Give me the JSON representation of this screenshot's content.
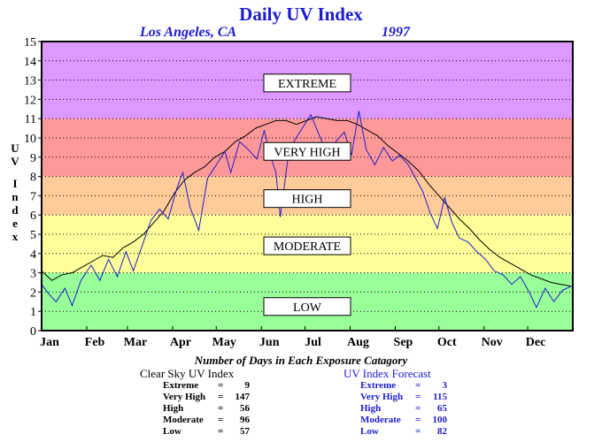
{
  "chart_data": {
    "type": "line",
    "title": "Daily UV Index",
    "subtitle_location": "Los Angeles, CA",
    "subtitle_year": "1997",
    "ylabel": "UV Index",
    "xlabel": "",
    "ylim": [
      0,
      15
    ],
    "yticks": [
      "0",
      "1",
      "2",
      "3",
      "4",
      "5",
      "6",
      "7",
      "8",
      "9",
      "10",
      "11",
      "12",
      "13",
      "14",
      "15"
    ],
    "xticks": [
      "Jan",
      "Feb",
      "Mar",
      "Apr",
      "May",
      "Jun",
      "Jul",
      "Aug",
      "Sep",
      "Oct",
      "Nov",
      "Dec"
    ],
    "bands": [
      {
        "label": "LOW",
        "from": 0,
        "to": 3,
        "color": "#99ff99",
        "label_y": 1.25
      },
      {
        "label": "MODERATE",
        "from": 3,
        "to": 6,
        "color": "#ffff99",
        "label_y": 4.4
      },
      {
        "label": "HIGH",
        "from": 6,
        "to": 8,
        "color": "#ffcc99",
        "label_y": 6.85
      },
      {
        "label": "VERY HIGH",
        "from": 8,
        "to": 11,
        "color": "#ff9999",
        "label_y": 9.3
      },
      {
        "label": "EXTREME",
        "from": 11,
        "to": 15,
        "color": "#dd99ff",
        "label_y": 12.85
      }
    ],
    "series": [
      {
        "color": "#000000",
        "points": [
          [
            1,
            3.1
          ],
          [
            8,
            2.6
          ],
          [
            15,
            2.9
          ],
          [
            22,
            3.0
          ],
          [
            29,
            3.3
          ],
          [
            36,
            3.6
          ],
          [
            43,
            3.9
          ],
          [
            50,
            3.8
          ],
          [
            57,
            4.3
          ],
          [
            64,
            4.6
          ],
          [
            71,
            5.0
          ],
          [
            78,
            5.6
          ],
          [
            85,
            6.2
          ],
          [
            92,
            7.1
          ],
          [
            99,
            7.8
          ],
          [
            106,
            8.2
          ],
          [
            113,
            8.5
          ],
          [
            120,
            9.0
          ],
          [
            127,
            9.3
          ],
          [
            134,
            9.8
          ],
          [
            141,
            10.1
          ],
          [
            148,
            10.5
          ],
          [
            155,
            10.7
          ],
          [
            162,
            10.9
          ],
          [
            169,
            10.9
          ],
          [
            176,
            10.7
          ],
          [
            183,
            10.9
          ],
          [
            190,
            11.1
          ],
          [
            197,
            11.0
          ],
          [
            204,
            10.9
          ],
          [
            211,
            10.9
          ],
          [
            218,
            10.7
          ],
          [
            225,
            10.4
          ],
          [
            232,
            10.1
          ],
          [
            239,
            9.6
          ],
          [
            246,
            9.2
          ],
          [
            253,
            8.8
          ],
          [
            260,
            8.3
          ],
          [
            267,
            7.6
          ],
          [
            274,
            7.0
          ],
          [
            281,
            6.4
          ],
          [
            288,
            5.8
          ],
          [
            295,
            5.3
          ],
          [
            302,
            4.7
          ],
          [
            309,
            4.2
          ],
          [
            316,
            3.8
          ],
          [
            323,
            3.5
          ],
          [
            330,
            3.2
          ],
          [
            337,
            2.9
          ],
          [
            344,
            2.7
          ],
          [
            351,
            2.5
          ],
          [
            358,
            2.4
          ],
          [
            365,
            2.3
          ]
        ]
      },
      {
        "color": "#1c1cd0",
        "points": [
          [
            1,
            2.4
          ],
          [
            6,
            1.9
          ],
          [
            11,
            1.5
          ],
          [
            17,
            2.2
          ],
          [
            22,
            1.3
          ],
          [
            28,
            2.6
          ],
          [
            35,
            3.4
          ],
          [
            41,
            2.6
          ],
          [
            47,
            3.7
          ],
          [
            53,
            2.8
          ],
          [
            59,
            4.1
          ],
          [
            64,
            3.1
          ],
          [
            71,
            4.6
          ],
          [
            76,
            5.7
          ],
          [
            82,
            6.3
          ],
          [
            88,
            5.8
          ],
          [
            94,
            7.4
          ],
          [
            98,
            8.2
          ],
          [
            103,
            6.4
          ],
          [
            109,
            5.2
          ],
          [
            115,
            7.9
          ],
          [
            121,
            8.6
          ],
          [
            127,
            9.3
          ],
          [
            131,
            8.2
          ],
          [
            137,
            9.8
          ],
          [
            143,
            9.4
          ],
          [
            149,
            8.9
          ],
          [
            154,
            10.4
          ],
          [
            158,
            9.1
          ],
          [
            162,
            8.2
          ],
          [
            165,
            5.9
          ],
          [
            170,
            8.8
          ],
          [
            175,
            9.9
          ],
          [
            181,
            10.6
          ],
          [
            186,
            11.2
          ],
          [
            192,
            10.1
          ],
          [
            197,
            9.2
          ],
          [
            203,
            9.8
          ],
          [
            209,
            10.3
          ],
          [
            214,
            9.1
          ],
          [
            219,
            11.4
          ],
          [
            224,
            9.4
          ],
          [
            230,
            8.6
          ],
          [
            236,
            9.5
          ],
          [
            242,
            8.8
          ],
          [
            247,
            9.1
          ],
          [
            253,
            8.6
          ],
          [
            258,
            7.9
          ],
          [
            263,
            7.2
          ],
          [
            268,
            6.1
          ],
          [
            273,
            5.3
          ],
          [
            278,
            6.9
          ],
          [
            283,
            5.6
          ],
          [
            288,
            4.8
          ],
          [
            294,
            4.6
          ],
          [
            300,
            4.1
          ],
          [
            306,
            3.7
          ],
          [
            312,
            3.1
          ],
          [
            318,
            2.9
          ],
          [
            324,
            2.4
          ],
          [
            330,
            2.8
          ],
          [
            336,
            2.0
          ],
          [
            341,
            1.2
          ],
          [
            347,
            2.2
          ],
          [
            353,
            1.5
          ],
          [
            359,
            2.1
          ],
          [
            365,
            2.3
          ]
        ]
      }
    ]
  },
  "caption": "Number of Days in Each Exposure Catagory",
  "clear_sky": {
    "title": "Clear Sky UV Index",
    "rows": [
      {
        "label": "Extreme",
        "value": "9"
      },
      {
        "label": "Very High",
        "value": "147"
      },
      {
        "label": "High",
        "value": "56"
      },
      {
        "label": "Moderate",
        "value": "96"
      },
      {
        "label": "Low",
        "value": "57"
      }
    ]
  },
  "forecast": {
    "title": "UV Index Forecast",
    "rows": [
      {
        "label": "Extreme",
        "value": "3"
      },
      {
        "label": "Very High",
        "value": "115"
      },
      {
        "label": "High",
        "value": "65"
      },
      {
        "label": "Moderate",
        "value": "100"
      },
      {
        "label": "Low",
        "value": "82"
      }
    ]
  }
}
